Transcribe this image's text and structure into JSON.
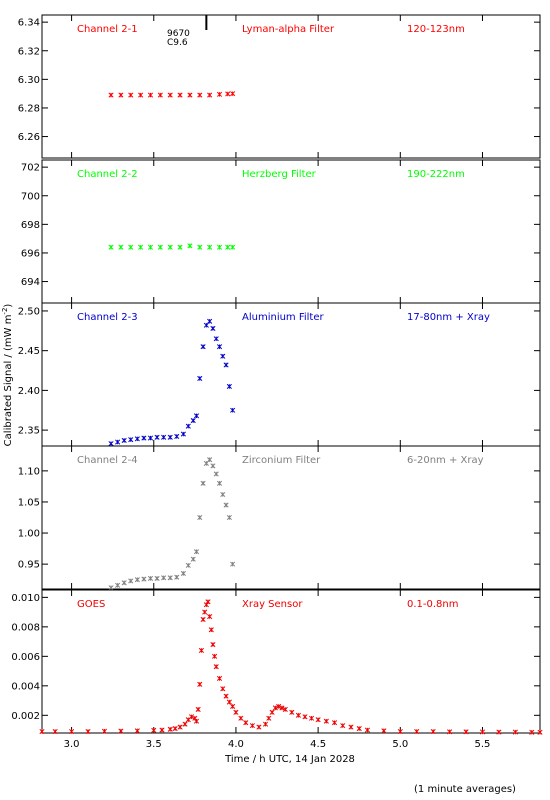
{
  "figure": {
    "ylabel": "Calibrated Signal / (mW m",
    "ylabel_sup": "-2",
    "ylabel_end": ")",
    "xlabel": "Time / h UTC, 14 Jan 2028",
    "footnote": "(1 minute averages)",
    "marker_label_1": "9670",
    "marker_label_2": "C9.6"
  },
  "chart_data": [
    {
      "type": "scatter",
      "title": "Channel 2-1",
      "filter": "Lyman-alpha Filter",
      "band": "120-123nm",
      "color": "#ff0000",
      "ylim": [
        6.245,
        6.345
      ],
      "yticks": [
        "6.26",
        "6.28",
        "6.30",
        "6.32",
        "6.34"
      ],
      "series": [
        {
          "x": [
            3.24,
            3.3,
            3.36,
            3.42,
            3.48,
            3.54,
            3.6,
            3.66,
            3.72,
            3.78,
            3.84,
            3.9,
            3.95,
            3.98
          ],
          "y": [
            6.289,
            6.289,
            6.289,
            6.289,
            6.289,
            6.289,
            6.289,
            6.289,
            6.289,
            6.289,
            6.289,
            6.2895,
            6.2898,
            6.29
          ]
        }
      ]
    },
    {
      "type": "scatter",
      "title": "Channel 2-2",
      "filter": "Herzberg Filter",
      "band": "190-222nm",
      "color": "#00ff00",
      "ylim": [
        692.5,
        702.5
      ],
      "yticks": [
        "694",
        "696",
        "698",
        "700",
        "702"
      ],
      "series": [
        {
          "x": [
            3.24,
            3.3,
            3.36,
            3.42,
            3.48,
            3.54,
            3.6,
            3.66,
            3.72,
            3.78,
            3.84,
            3.9,
            3.95,
            3.98
          ],
          "y": [
            696.4,
            696.4,
            696.4,
            696.4,
            696.4,
            696.4,
            696.4,
            696.4,
            696.5,
            696.4,
            696.4,
            696.4,
            696.4,
            696.4
          ]
        }
      ]
    },
    {
      "type": "scatter",
      "title": "Channel 2-3",
      "filter": "Aluminium Filter",
      "band": "17-80nm + Xray",
      "color": "#0000cc",
      "ylim": [
        2.33,
        2.51
      ],
      "yticks": [
        "2.35",
        "2.40",
        "2.45",
        "2.50"
      ],
      "series": [
        {
          "x": [
            3.24,
            3.28,
            3.32,
            3.36,
            3.4,
            3.44,
            3.48,
            3.52,
            3.56,
            3.6,
            3.64,
            3.68,
            3.71,
            3.74,
            3.76,
            3.78,
            3.8,
            3.82,
            3.84,
            3.86,
            3.88,
            3.9,
            3.92,
            3.94,
            3.96,
            3.98
          ],
          "y": [
            2.333,
            2.335,
            2.337,
            2.338,
            2.339,
            2.34,
            2.34,
            2.341,
            2.341,
            2.341,
            2.342,
            2.345,
            2.355,
            2.362,
            2.368,
            2.415,
            2.455,
            2.482,
            2.487,
            2.478,
            2.465,
            2.455,
            2.443,
            2.432,
            2.405,
            2.375
          ]
        }
      ]
    },
    {
      "type": "scatter",
      "title": "Channel 2-4",
      "filter": "Zirconium Filter",
      "band": "6-20nm + Xray",
      "color": "#808080",
      "ylim": [
        0.91,
        1.14
      ],
      "yticks": [
        "0.95",
        "1.00",
        "1.05",
        "1.10"
      ],
      "series": [
        {
          "x": [
            3.24,
            3.28,
            3.32,
            3.36,
            3.4,
            3.44,
            3.48,
            3.52,
            3.56,
            3.6,
            3.64,
            3.68,
            3.71,
            3.74,
            3.76,
            3.78,
            3.8,
            3.82,
            3.84,
            3.86,
            3.88,
            3.9,
            3.92,
            3.94,
            3.96,
            3.98
          ],
          "y": [
            0.912,
            0.916,
            0.92,
            0.923,
            0.925,
            0.926,
            0.927,
            0.927,
            0.928,
            0.928,
            0.929,
            0.935,
            0.948,
            0.958,
            0.97,
            1.025,
            1.08,
            1.112,
            1.118,
            1.108,
            1.095,
            1.08,
            1.062,
            1.045,
            1.025,
            0.95
          ]
        }
      ]
    },
    {
      "type": "scatter",
      "title": "GOES",
      "filter": "Xray Sensor",
      "band": "0.1-0.8nm",
      "color": "#ee0000",
      "ylim": [
        0.0008,
        0.0105
      ],
      "yticks": [
        "0.002",
        "0.004",
        "0.006",
        "0.008",
        "0.010"
      ],
      "series": [
        {
          "x": [
            2.82,
            2.9,
            3.0,
            3.1,
            3.2,
            3.3,
            3.4,
            3.5,
            3.55,
            3.6,
            3.63,
            3.66,
            3.69,
            3.71,
            3.73,
            3.75,
            3.76,
            3.77,
            3.78,
            3.79,
            3.8,
            3.81,
            3.82,
            3.83,
            3.84,
            3.85,
            3.86,
            3.87,
            3.88,
            3.9,
            3.92,
            3.94,
            3.96,
            3.98,
            4.0,
            4.03,
            4.06,
            4.1,
            4.14,
            4.18,
            4.2,
            4.22,
            4.24,
            4.26,
            4.28,
            4.3,
            4.34,
            4.38,
            4.42,
            4.46,
            4.5,
            4.55,
            4.6,
            4.65,
            4.7,
            4.75,
            4.8,
            4.9,
            5.0,
            5.1,
            5.2,
            5.3,
            5.4,
            5.5,
            5.6,
            5.7,
            5.8,
            5.85
          ],
          "y": [
            0.0009,
            0.0009,
            0.0009,
            0.0009,
            0.00092,
            0.00093,
            0.00095,
            0.00098,
            0.001,
            0.00105,
            0.0011,
            0.0012,
            0.0014,
            0.0017,
            0.0019,
            0.0018,
            0.0016,
            0.0024,
            0.0041,
            0.0064,
            0.0085,
            0.009,
            0.0095,
            0.0097,
            0.0087,
            0.0078,
            0.0068,
            0.006,
            0.0053,
            0.0045,
            0.0038,
            0.0033,
            0.0029,
            0.0026,
            0.0022,
            0.0018,
            0.0015,
            0.0013,
            0.0012,
            0.0014,
            0.0018,
            0.0022,
            0.0025,
            0.0026,
            0.0025,
            0.0024,
            0.0022,
            0.002,
            0.0019,
            0.0018,
            0.0017,
            0.0016,
            0.0015,
            0.0013,
            0.0012,
            0.0011,
            0.001,
            0.00095,
            0.0009,
            0.0009,
            0.0009,
            0.00088,
            0.00088,
            0.00087,
            0.00086,
            0.00086,
            0.00085,
            0.00085
          ]
        }
      ]
    }
  ],
  "xaxis": {
    "xlim": [
      2.82,
      5.85
    ],
    "ticks": [
      3.0,
      3.5,
      4.0,
      4.5,
      5.0,
      5.5
    ],
    "tick_labels": [
      "3.0",
      "3.5",
      "4.0",
      "4.5",
      "5.0",
      "5.5"
    ],
    "flare_peak_time": 3.82
  }
}
